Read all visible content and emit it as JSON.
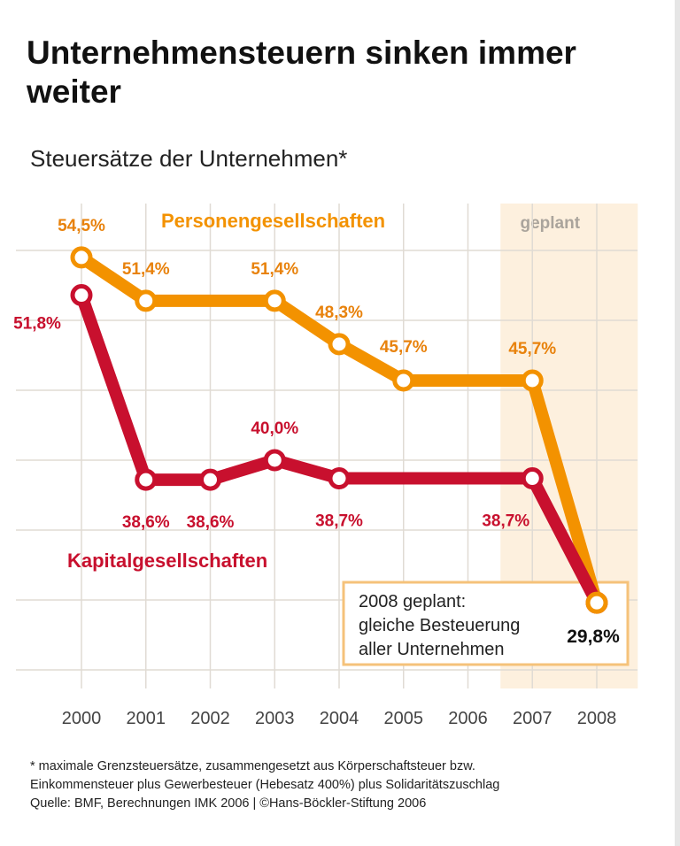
{
  "chart_data": {
    "type": "line",
    "title": "Unternehmensteuern sinken immer weiter",
    "subtitle": "Steuersätze der Unternehmen*",
    "categories": [
      "2000",
      "2001",
      "2002",
      "2003",
      "2004",
      "2005",
      "2006",
      "2007",
      "2008"
    ],
    "ylim": [
      25,
      55
    ],
    "grid": true,
    "planned_label": "geplant",
    "planned_from": "2007",
    "series": [
      {
        "name": "Personengesellschaften",
        "color": "#F39200",
        "x": [
          "2000",
          "2001",
          "2003",
          "2004",
          "2005",
          "2007",
          "2008"
        ],
        "values": [
          54.5,
          51.4,
          51.4,
          48.3,
          45.7,
          45.7,
          29.8
        ],
        "labels": [
          "54,5%",
          "51,4%",
          "51,4%",
          "48,3%",
          "45,7%",
          "45,7%",
          ""
        ]
      },
      {
        "name": "Kapitalgesellschaften",
        "color": "#C8102E",
        "x": [
          "2000",
          "2001",
          "2002",
          "2003",
          "2004",
          "2007",
          "2008"
        ],
        "values": [
          51.8,
          38.6,
          38.6,
          40.0,
          38.7,
          38.7,
          29.8
        ],
        "labels": [
          "51,8%",
          "38,6%",
          "38,6%",
          "40,0%",
          "38,7%",
          "38,7%",
          ""
        ]
      }
    ],
    "annotation": {
      "lines": [
        "2008 geplant:",
        "gleiche Besteuerung",
        "aller Unternehmen"
      ],
      "value": "29,8%"
    }
  },
  "footnote": [
    "* maximale Grenzsteuersätze, zusammengesetzt aus Körperschaftsteuer bzw.",
    "Einkommensteuer plus Gewerbesteuer (Hebesatz 400%) plus Solidaritätszuschlag",
    "Quelle: BMF, Berechnungen IMK 2006 | ©Hans-Böckler-Stiftung 2006"
  ]
}
